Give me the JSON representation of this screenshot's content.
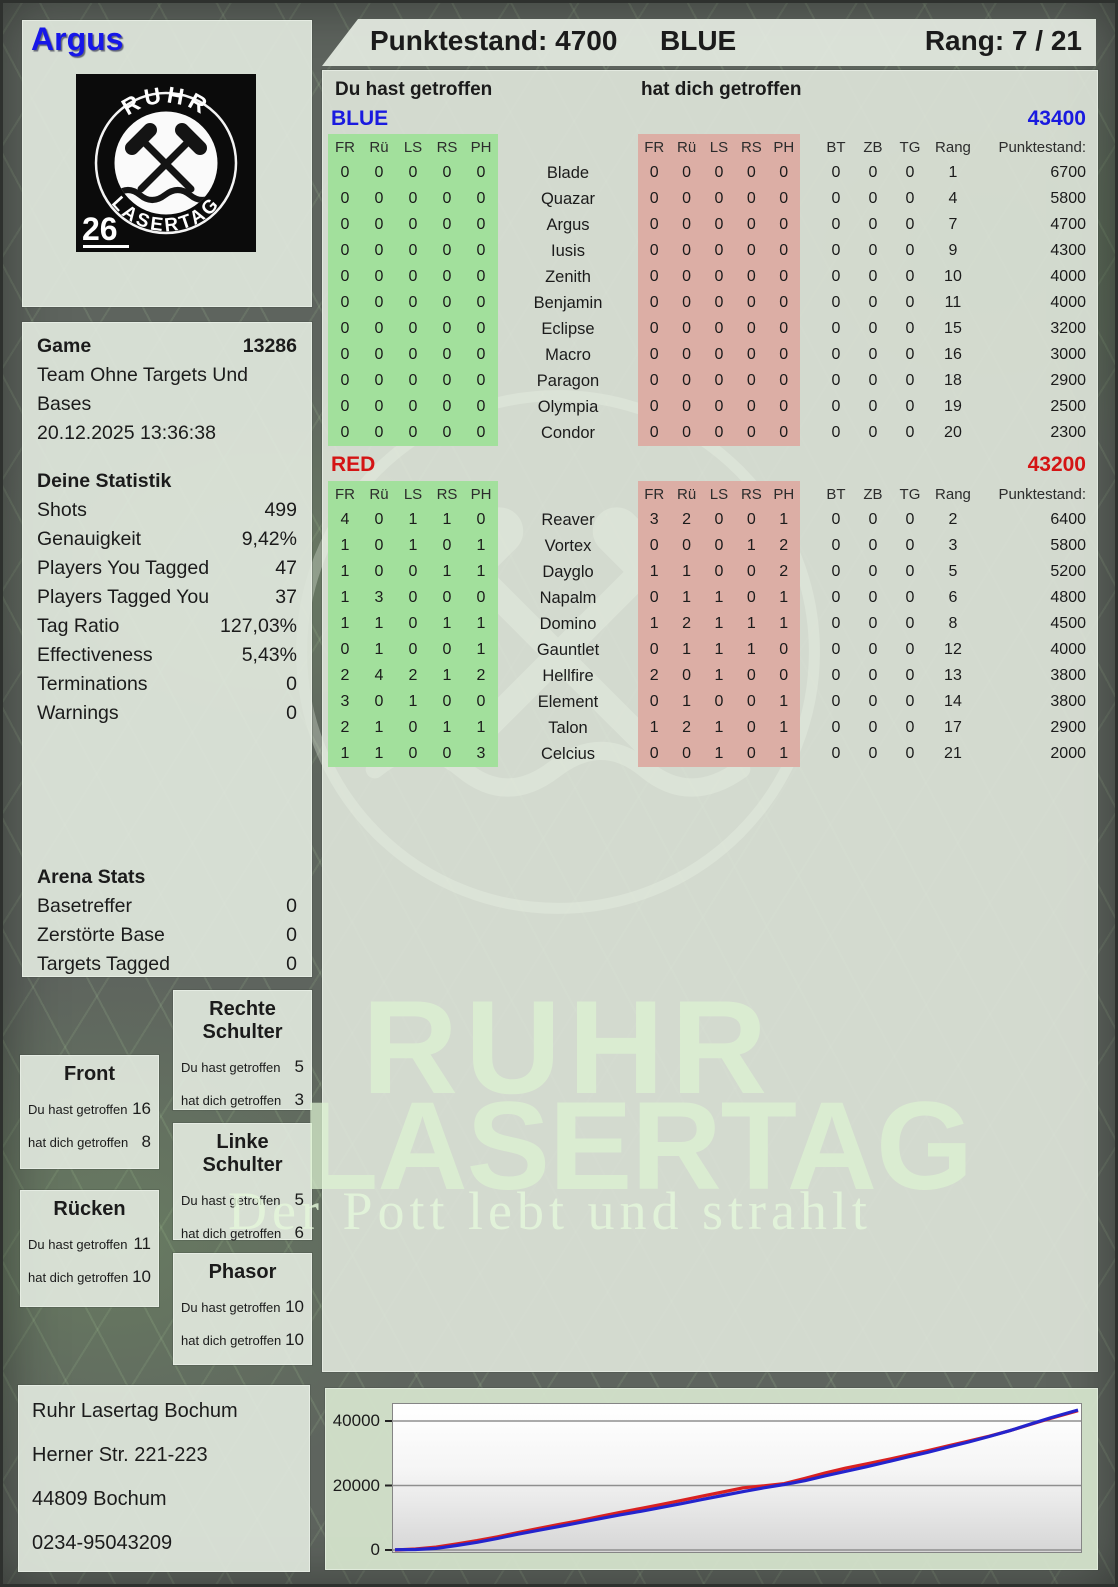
{
  "header": {
    "player": "Argus",
    "score_label": "Punktestand: 4700",
    "team": "BLUE",
    "rank_label": "Rang: 7 / 21"
  },
  "logo": {
    "arc_top": "RUHR",
    "arc_bottom": "LASERTAG",
    "badge": "26"
  },
  "game": {
    "label": "Game",
    "number": "13286",
    "mode": "Team Ohne Targets Und Bases",
    "datetime": "20.12.2025 13:36:38"
  },
  "stats": {
    "title": "Deine Statistik",
    "rows": [
      {
        "label": "Shots",
        "value": "499"
      },
      {
        "label": "Genauigkeit",
        "value": "9,42%"
      },
      {
        "label": "Players You Tagged",
        "value": "47"
      },
      {
        "label": "Players Tagged You",
        "value": "37"
      },
      {
        "label": "Tag Ratio",
        "value": "127,03%"
      },
      {
        "label": "Effectiveness",
        "value": "5,43%"
      },
      {
        "label": "Terminations",
        "value": "0"
      },
      {
        "label": "Warnings",
        "value": "0"
      }
    ]
  },
  "arena": {
    "title": "Arena Stats",
    "rows": [
      {
        "label": "Basetreffer",
        "value": "0"
      },
      {
        "label": "Zerstörte Base",
        "value": "0"
      },
      {
        "label": "Targets Tagged",
        "value": "0"
      }
    ]
  },
  "body_parts": {
    "hit_label": "Du hast getroffen",
    "got_label": "hat dich getroffen",
    "panels": [
      {
        "title": "Front",
        "hit": "16",
        "got": "8"
      },
      {
        "title": "Rücken",
        "hit": "11",
        "got": "10"
      },
      {
        "title": "Rechte Schulter",
        "hit": "5",
        "got": "3"
      },
      {
        "title": "Linke Schulter",
        "hit": "5",
        "got": "6"
      },
      {
        "title": "Phasor",
        "hit": "10",
        "got": "10"
      }
    ]
  },
  "table": {
    "you_hit_label": "Du hast getroffen",
    "hit_you_label": "hat dich getroffen",
    "columns_hit": [
      "FR",
      "Rü",
      "LS",
      "RS",
      "PH"
    ],
    "columns_meta": [
      "BT",
      "ZB",
      "TG",
      "Rang",
      "Punktestand:"
    ],
    "green_block_color": "#a2e09c",
    "red_block_color": "#dcaea5",
    "teams": [
      {
        "name": "BLUE",
        "score": "43400",
        "color": "#1a1adf",
        "rows": [
          {
            "you": [
              0,
              0,
              0,
              0,
              0
            ],
            "name": "Blade",
            "them": [
              0,
              0,
              0,
              0,
              0
            ],
            "bt": 0,
            "zb": 0,
            "tg": 0,
            "rang": 1,
            "punkte": 6700
          },
          {
            "you": [
              0,
              0,
              0,
              0,
              0
            ],
            "name": "Quazar",
            "them": [
              0,
              0,
              0,
              0,
              0
            ],
            "bt": 0,
            "zb": 0,
            "tg": 0,
            "rang": 4,
            "punkte": 5800
          },
          {
            "you": [
              0,
              0,
              0,
              0,
              0
            ],
            "name": "Argus",
            "them": [
              0,
              0,
              0,
              0,
              0
            ],
            "bt": 0,
            "zb": 0,
            "tg": 0,
            "rang": 7,
            "punkte": 4700
          },
          {
            "you": [
              0,
              0,
              0,
              0,
              0
            ],
            "name": "Iusis",
            "them": [
              0,
              0,
              0,
              0,
              0
            ],
            "bt": 0,
            "zb": 0,
            "tg": 0,
            "rang": 9,
            "punkte": 4300
          },
          {
            "you": [
              0,
              0,
              0,
              0,
              0
            ],
            "name": "Zenith",
            "them": [
              0,
              0,
              0,
              0,
              0
            ],
            "bt": 0,
            "zb": 0,
            "tg": 0,
            "rang": 10,
            "punkte": 4000
          },
          {
            "you": [
              0,
              0,
              0,
              0,
              0
            ],
            "name": "Benjamin",
            "them": [
              0,
              0,
              0,
              0,
              0
            ],
            "bt": 0,
            "zb": 0,
            "tg": 0,
            "rang": 11,
            "punkte": 4000
          },
          {
            "you": [
              0,
              0,
              0,
              0,
              0
            ],
            "name": "Eclipse",
            "them": [
              0,
              0,
              0,
              0,
              0
            ],
            "bt": 0,
            "zb": 0,
            "tg": 0,
            "rang": 15,
            "punkte": 3200
          },
          {
            "you": [
              0,
              0,
              0,
              0,
              0
            ],
            "name": "Macro",
            "them": [
              0,
              0,
              0,
              0,
              0
            ],
            "bt": 0,
            "zb": 0,
            "tg": 0,
            "rang": 16,
            "punkte": 3000
          },
          {
            "you": [
              0,
              0,
              0,
              0,
              0
            ],
            "name": "Paragon",
            "them": [
              0,
              0,
              0,
              0,
              0
            ],
            "bt": 0,
            "zb": 0,
            "tg": 0,
            "rang": 18,
            "punkte": 2900
          },
          {
            "you": [
              0,
              0,
              0,
              0,
              0
            ],
            "name": "Olympia",
            "them": [
              0,
              0,
              0,
              0,
              0
            ],
            "bt": 0,
            "zb": 0,
            "tg": 0,
            "rang": 19,
            "punkte": 2500
          },
          {
            "you": [
              0,
              0,
              0,
              0,
              0
            ],
            "name": "Condor",
            "them": [
              0,
              0,
              0,
              0,
              0
            ],
            "bt": 0,
            "zb": 0,
            "tg": 0,
            "rang": 20,
            "punkte": 2300
          }
        ]
      },
      {
        "name": "RED",
        "score": "43200",
        "color": "#d41414",
        "rows": [
          {
            "you": [
              4,
              0,
              1,
              1,
              0
            ],
            "name": "Reaver",
            "them": [
              3,
              2,
              0,
              0,
              1
            ],
            "bt": 0,
            "zb": 0,
            "tg": 0,
            "rang": 2,
            "punkte": 6400
          },
          {
            "you": [
              1,
              0,
              1,
              0,
              1
            ],
            "name": "Vortex",
            "them": [
              0,
              0,
              0,
              1,
              2
            ],
            "bt": 0,
            "zb": 0,
            "tg": 0,
            "rang": 3,
            "punkte": 5800
          },
          {
            "you": [
              1,
              0,
              0,
              1,
              1
            ],
            "name": "Dayglo",
            "them": [
              1,
              1,
              0,
              0,
              2
            ],
            "bt": 0,
            "zb": 0,
            "tg": 0,
            "rang": 5,
            "punkte": 5200
          },
          {
            "you": [
              1,
              3,
              0,
              0,
              0
            ],
            "name": "Napalm",
            "them": [
              0,
              1,
              1,
              0,
              1
            ],
            "bt": 0,
            "zb": 0,
            "tg": 0,
            "rang": 6,
            "punkte": 4800
          },
          {
            "you": [
              1,
              1,
              0,
              1,
              1
            ],
            "name": "Domino",
            "them": [
              1,
              2,
              1,
              1,
              1
            ],
            "bt": 0,
            "zb": 0,
            "tg": 0,
            "rang": 8,
            "punkte": 4500
          },
          {
            "you": [
              0,
              1,
              0,
              0,
              1
            ],
            "name": "Gauntlet",
            "them": [
              0,
              1,
              1,
              1,
              0
            ],
            "bt": 0,
            "zb": 0,
            "tg": 0,
            "rang": 12,
            "punkte": 4000
          },
          {
            "you": [
              2,
              4,
              2,
              1,
              2
            ],
            "name": "Hellfire",
            "them": [
              2,
              0,
              1,
              0,
              0
            ],
            "bt": 0,
            "zb": 0,
            "tg": 0,
            "rang": 13,
            "punkte": 3800
          },
          {
            "you": [
              3,
              0,
              1,
              0,
              0
            ],
            "name": "Element",
            "them": [
              0,
              1,
              0,
              0,
              1
            ],
            "bt": 0,
            "zb": 0,
            "tg": 0,
            "rang": 14,
            "punkte": 3800
          },
          {
            "you": [
              2,
              1,
              0,
              1,
              1
            ],
            "name": "Talon",
            "them": [
              1,
              2,
              1,
              0,
              1
            ],
            "bt": 0,
            "zb": 0,
            "tg": 0,
            "rang": 17,
            "punkte": 2900
          },
          {
            "you": [
              1,
              1,
              0,
              0,
              3
            ],
            "name": "Celcius",
            "them": [
              0,
              0,
              1,
              0,
              1
            ],
            "bt": 0,
            "zb": 0,
            "tg": 0,
            "rang": 21,
            "punkte": 2000
          }
        ]
      }
    ]
  },
  "watermark": {
    "line1": "RUHR",
    "line2": "LASERTAG",
    "tagline": "Der Pott lebt und strahlt"
  },
  "address": {
    "lines": [
      "Ruhr Lasertag Bochum",
      "Herner Str. 221-223",
      "44809 Bochum",
      "0234-95043209"
    ]
  },
  "chart_data": {
    "type": "line",
    "title": "",
    "xlabel": "",
    "ylabel": "",
    "ylim": [
      0,
      45600
    ],
    "grid": true,
    "legend_position": "none",
    "yticks": [
      {
        "label": "0",
        "value": 0
      },
      {
        "label": "20000",
        "value": 20000
      },
      {
        "label": "40000",
        "value": 40000
      }
    ],
    "series": [
      {
        "name": "RED",
        "color": "#d92121",
        "points": [
          [
            0,
            0
          ],
          [
            0.03,
            300
          ],
          [
            0.06,
            900
          ],
          [
            0.09,
            1900
          ],
          [
            0.12,
            2900
          ],
          [
            0.15,
            4100
          ],
          [
            0.18,
            5400
          ],
          [
            0.21,
            6700
          ],
          [
            0.24,
            7900
          ],
          [
            0.27,
            9100
          ],
          [
            0.3,
            10400
          ],
          [
            0.33,
            11700
          ],
          [
            0.36,
            12900
          ],
          [
            0.39,
            14100
          ],
          [
            0.42,
            15400
          ],
          [
            0.45,
            16700
          ],
          [
            0.48,
            18000
          ],
          [
            0.51,
            19300
          ],
          [
            0.54,
            19900
          ],
          [
            0.57,
            20600
          ],
          [
            0.6,
            22200
          ],
          [
            0.63,
            23900
          ],
          [
            0.66,
            25400
          ],
          [
            0.69,
            26700
          ],
          [
            0.72,
            28000
          ],
          [
            0.75,
            29400
          ],
          [
            0.78,
            30800
          ],
          [
            0.81,
            32300
          ],
          [
            0.84,
            33800
          ],
          [
            0.87,
            35300
          ],
          [
            0.9,
            37000
          ],
          [
            0.93,
            38900
          ],
          [
            0.96,
            40800
          ],
          [
            1,
            43200
          ]
        ]
      },
      {
        "name": "BLUE",
        "color": "#2424cd",
        "points": [
          [
            0,
            100
          ],
          [
            0.03,
            150
          ],
          [
            0.06,
            500
          ],
          [
            0.09,
            1400
          ],
          [
            0.12,
            2400
          ],
          [
            0.15,
            3600
          ],
          [
            0.18,
            4900
          ],
          [
            0.21,
            6100
          ],
          [
            0.24,
            7300
          ],
          [
            0.27,
            8500
          ],
          [
            0.3,
            9700
          ],
          [
            0.33,
            10900
          ],
          [
            0.36,
            12000
          ],
          [
            0.39,
            13200
          ],
          [
            0.42,
            14400
          ],
          [
            0.45,
            15700
          ],
          [
            0.48,
            16900
          ],
          [
            0.51,
            18100
          ],
          [
            0.54,
            19300
          ],
          [
            0.57,
            20300
          ],
          [
            0.6,
            21500
          ],
          [
            0.63,
            23000
          ],
          [
            0.66,
            24400
          ],
          [
            0.69,
            25800
          ],
          [
            0.72,
            27300
          ],
          [
            0.75,
            28800
          ],
          [
            0.78,
            30300
          ],
          [
            0.81,
            31900
          ],
          [
            0.84,
            33500
          ],
          [
            0.87,
            35200
          ],
          [
            0.9,
            37000
          ],
          [
            0.93,
            39000
          ],
          [
            0.96,
            41000
          ],
          [
            1,
            43400
          ]
        ]
      }
    ]
  }
}
